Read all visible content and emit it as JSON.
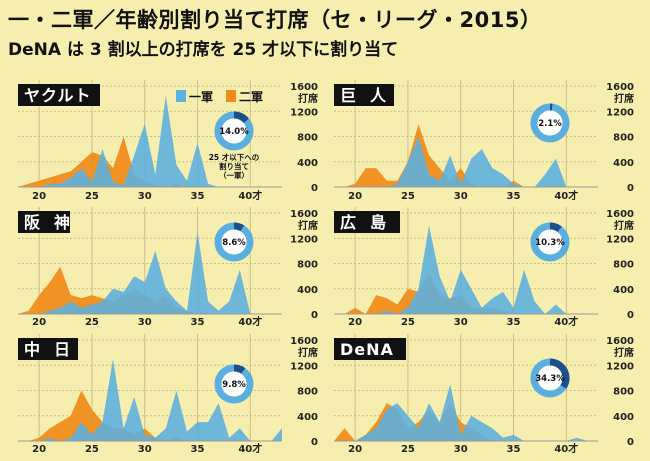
{
  "title": "一・二軍／年齢別割り当て打席（セ・リーグ・2015）",
  "subtitle": "DeNA は 3 割以上の打席を 25 才以下に割り当て",
  "colors": {
    "first": "#5fb0dd",
    "second": "#f08c1e",
    "grid": "#c9bf8c",
    "label_bg": "#111111",
    "donut_bg": "#5aaee0",
    "donut_fg": "#1d4f8c",
    "donut_center": "#ffffff"
  },
  "legend": {
    "first": "一軍",
    "second": "二軍"
  },
  "donut_note": [
    "25 才以下への",
    "割り当て",
    "（一軍）"
  ],
  "chart_data": [
    {
      "type": "area",
      "team": "ヤクルト",
      "donut_value": 14.0,
      "donut_label": "14.0%",
      "x": [
        18,
        19,
        20,
        21,
        22,
        23,
        24,
        25,
        26,
        27,
        28,
        29,
        30,
        31,
        32,
        33,
        34,
        35,
        36,
        37,
        38,
        39,
        40,
        41,
        42,
        43
      ],
      "series": [
        {
          "name": "一軍",
          "values": [
            0,
            0,
            0,
            50,
            50,
            150,
            300,
            80,
            600,
            80,
            30,
            500,
            1000,
            200,
            1450,
            350,
            100,
            700,
            50,
            0,
            0,
            0,
            0,
            0,
            0,
            0
          ]
        },
        {
          "name": "二軍",
          "values": [
            0,
            50,
            100,
            150,
            200,
            250,
            400,
            550,
            500,
            300,
            800,
            200,
            100,
            30,
            0,
            50,
            0,
            0,
            0,
            0,
            0,
            0,
            0,
            0,
            0,
            0
          ]
        }
      ],
      "xticks": [
        20,
        25,
        30,
        35,
        40
      ],
      "xlabel_suffix": "才",
      "yticks": [
        0,
        400,
        800,
        1200,
        1600
      ],
      "ylabel": "打席",
      "ylim": [
        0,
        1600
      ]
    },
    {
      "type": "area",
      "team": "巨人",
      "donut_value": 2.1,
      "donut_label": "2.1%",
      "x": [
        18,
        19,
        20,
        21,
        22,
        23,
        24,
        25,
        26,
        27,
        28,
        29,
        30,
        31,
        32,
        33,
        34,
        35,
        36,
        37,
        38,
        39,
        40,
        41,
        42,
        43
      ],
      "series": [
        {
          "name": "一軍",
          "values": [
            0,
            0,
            0,
            0,
            0,
            0,
            50,
            400,
            800,
            200,
            100,
            500,
            50,
            450,
            600,
            300,
            200,
            50,
            0,
            0,
            200,
            450,
            0,
            0,
            0,
            0
          ]
        },
        {
          "name": "二軍",
          "values": [
            0,
            0,
            50,
            300,
            300,
            100,
            100,
            400,
            1000,
            500,
            300,
            100,
            300,
            50,
            0,
            0,
            0,
            100,
            0,
            0,
            0,
            0,
            0,
            0,
            0,
            0
          ]
        }
      ],
      "xticks": [
        20,
        25,
        30,
        35,
        40
      ],
      "xlabel_suffix": "才",
      "yticks": [
        0,
        400,
        800,
        1200,
        1600
      ],
      "ylabel": "打席",
      "ylim": [
        0,
        1600
      ]
    },
    {
      "type": "area",
      "team": "阪神",
      "donut_value": 8.6,
      "donut_label": "8.6%",
      "x": [
        18,
        19,
        20,
        21,
        22,
        23,
        24,
        25,
        26,
        27,
        28,
        29,
        30,
        31,
        32,
        33,
        34,
        35,
        36,
        37,
        38,
        39,
        40,
        41,
        42,
        43
      ],
      "series": [
        {
          "name": "一軍",
          "values": [
            0,
            0,
            0,
            50,
            100,
            200,
            100,
            150,
            200,
            400,
            350,
            600,
            500,
            1000,
            400,
            200,
            50,
            1300,
            200,
            50,
            200,
            700,
            0,
            0,
            0,
            0
          ]
        },
        {
          "name": "二軍",
          "values": [
            0,
            50,
            300,
            500,
            750,
            300,
            250,
            300,
            250,
            200,
            300,
            400,
            300,
            200,
            300,
            100,
            50,
            0,
            0,
            0,
            0,
            0,
            0,
            0,
            0,
            0
          ]
        }
      ],
      "xticks": [
        20,
        25,
        30,
        35,
        40
      ],
      "xlabel_suffix": "才",
      "yticks": [
        0,
        400,
        800,
        1200,
        1600
      ],
      "ylabel": "打席",
      "ylim": [
        0,
        1600
      ]
    },
    {
      "type": "area",
      "team": "広島",
      "donut_value": 10.3,
      "donut_label": "10.3%",
      "x": [
        18,
        19,
        20,
        21,
        22,
        23,
        24,
        25,
        26,
        27,
        28,
        29,
        30,
        31,
        32,
        33,
        34,
        35,
        36,
        37,
        38,
        39,
        40,
        41,
        42,
        43
      ],
      "series": [
        {
          "name": "一軍",
          "values": [
            0,
            0,
            0,
            0,
            0,
            50,
            0,
            100,
            400,
            1400,
            600,
            200,
            700,
            400,
            100,
            250,
            350,
            100,
            700,
            200,
            0,
            150,
            0,
            0,
            0,
            0
          ]
        },
        {
          "name": "二軍",
          "values": [
            0,
            0,
            100,
            0,
            300,
            250,
            150,
            400,
            350,
            650,
            300,
            250,
            300,
            100,
            100,
            100,
            50,
            0,
            0,
            0,
            0,
            0,
            0,
            0,
            0,
            0
          ]
        }
      ],
      "xticks": [
        20,
        25,
        30,
        35,
        40
      ],
      "xlabel_suffix": "才",
      "yticks": [
        0,
        400,
        800,
        1200,
        1600
      ],
      "ylabel": "打席",
      "ylim": [
        0,
        1600
      ]
    },
    {
      "type": "area",
      "team": "中日",
      "donut_value": 9.8,
      "donut_label": "9.8%",
      "x": [
        18,
        19,
        20,
        21,
        22,
        23,
        24,
        25,
        26,
        27,
        28,
        29,
        30,
        31,
        32,
        33,
        34,
        35,
        36,
        37,
        38,
        39,
        40,
        41,
        42,
        43
      ],
      "series": [
        {
          "name": "一軍",
          "values": [
            0,
            0,
            0,
            50,
            0,
            50,
            300,
            100,
            300,
            1300,
            200,
            700,
            100,
            50,
            200,
            800,
            150,
            300,
            300,
            600,
            50,
            200,
            0,
            0,
            0,
            200
          ]
        },
        {
          "name": "二軍",
          "values": [
            0,
            0,
            50,
            200,
            300,
            400,
            800,
            500,
            300,
            200,
            200,
            100,
            200,
            50,
            0,
            50,
            0,
            0,
            0,
            0,
            0,
            0,
            0,
            0,
            0,
            0
          ]
        }
      ],
      "xticks": [
        20,
        25,
        30,
        35,
        40
      ],
      "xlabel_suffix": "才",
      "yticks": [
        0,
        400,
        800,
        1200,
        1600
      ],
      "ylabel": "打席",
      "ylim": [
        0,
        1600
      ]
    },
    {
      "type": "area",
      "team": "DeNA",
      "donut_value": 34.3,
      "donut_label": "34.3%",
      "x": [
        18,
        19,
        20,
        21,
        22,
        23,
        24,
        25,
        26,
        27,
        28,
        29,
        30,
        31,
        32,
        33,
        34,
        35,
        36,
        37,
        38,
        39,
        40,
        41,
        42,
        43
      ],
      "series": [
        {
          "name": "一軍",
          "values": [
            0,
            0,
            0,
            100,
            200,
            500,
            600,
            400,
            200,
            600,
            300,
            900,
            100,
            400,
            300,
            200,
            50,
            100,
            0,
            0,
            0,
            0,
            0,
            50,
            0,
            0
          ]
        },
        {
          "name": "二軍",
          "values": [
            0,
            200,
            0,
            100,
            300,
            600,
            500,
            200,
            300,
            500,
            300,
            600,
            300,
            200,
            100,
            0,
            0,
            0,
            0,
            0,
            0,
            0,
            0,
            0,
            0,
            0
          ]
        }
      ],
      "xticks": [
        20,
        25,
        30,
        35,
        40
      ],
      "xlabel_suffix": "才",
      "yticks": [
        0,
        400,
        800,
        1200,
        1600
      ],
      "ylabel": "打席",
      "ylim": [
        0,
        1600
      ]
    }
  ]
}
